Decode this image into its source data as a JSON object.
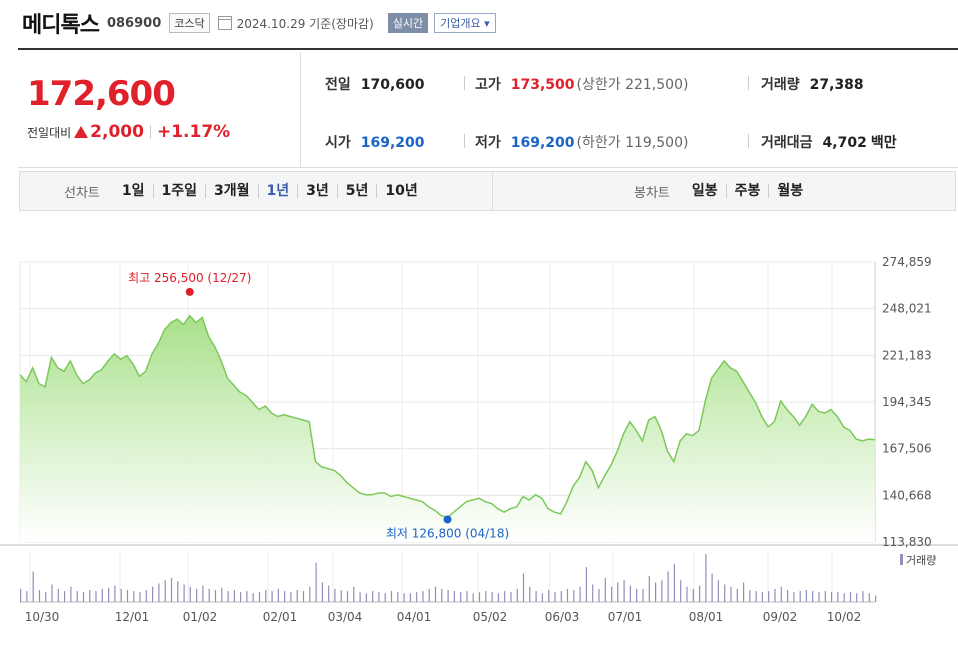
{
  "header": {
    "name": "메디톡스",
    "code": "086900",
    "market": "코스닥",
    "date_text": "2024.10.29 기준(장마감)",
    "realtime_label": "실시간",
    "company_overview_label": "기업개요"
  },
  "price": {
    "current": "172,600",
    "change_label": "전일대비",
    "change_value": "2,000",
    "change_pct": "+1.17%"
  },
  "stats": {
    "prev_close_label": "전일",
    "prev_close": "170,600",
    "high_label": "고가",
    "high": "173,500",
    "upper_limit": "(상한가 221,500)",
    "volume_label": "거래량",
    "volume": "27,388",
    "open_label": "시가",
    "open": "169,200",
    "low_label": "저가",
    "low": "169,200",
    "lower_limit": "(하한가 119,500)",
    "amount_label": "거래대금",
    "amount": "4,702",
    "amount_unit": "백만"
  },
  "period_bar": {
    "line_chart_label": "선차트",
    "line_periods": [
      "1일",
      "1주일",
      "3개월",
      "1년",
      "3년",
      "5년",
      "10년"
    ],
    "active_period": "1년",
    "candle_chart_label": "봉차트",
    "candle_periods": [
      "일봉",
      "주봉",
      "월봉"
    ]
  },
  "colors": {
    "up": "#e0202a",
    "down": "#1a64c8",
    "line": "#7cc95a",
    "area_top": "#a8e08a",
    "volume": "#8f8fb8"
  },
  "chart_data": {
    "type": "area",
    "y_ticks": [
      "274,859",
      "248,021",
      "221,183",
      "194,345",
      "167,506",
      "140,668",
      "113,830"
    ],
    "ylim": [
      113830,
      274859
    ],
    "x_ticks": [
      "10/30",
      "12/01",
      "01/02",
      "02/01",
      "03/04",
      "04/01",
      "05/02",
      "06/03",
      "07/01",
      "08/01",
      "09/02",
      "10/02"
    ],
    "max_annotation": "최고 256,500 (12/27)",
    "min_annotation": "최저 126,800 (04/18)",
    "volume_legend": "거래량",
    "price_series": [
      210000,
      206000,
      214000,
      205000,
      203000,
      220000,
      214000,
      212000,
      218000,
      210000,
      205000,
      207000,
      211000,
      213000,
      218000,
      222000,
      219000,
      221000,
      216000,
      209000,
      212000,
      222000,
      228000,
      236000,
      240000,
      242000,
      239000,
      244000,
      240000,
      243000,
      232000,
      226000,
      218000,
      208000,
      204000,
      200000,
      198000,
      194000,
      190000,
      192000,
      188000,
      186000,
      187000,
      186000,
      185000,
      184000,
      183000,
      160000,
      157000,
      156000,
      155000,
      152000,
      148000,
      145000,
      142000,
      141000,
      141000,
      142000,
      142000,
      140000,
      141000,
      140000,
      139000,
      138000,
      137000,
      134000,
      132000,
      129000,
      128000,
      131000,
      134000,
      137000,
      138000,
      139000,
      137000,
      136000,
      133000,
      131000,
      133000,
      134000,
      140000,
      138000,
      141000,
      139000,
      133000,
      131000,
      130000,
      137000,
      146000,
      151000,
      160000,
      155000,
      145000,
      152000,
      158000,
      166000,
      176000,
      183000,
      178000,
      172000,
      184000,
      186000,
      178000,
      166000,
      160000,
      172000,
      176000,
      175000,
      178000,
      195000,
      208000,
      213000,
      218000,
      214000,
      212000,
      206000,
      200000,
      194000,
      186000,
      180000,
      183000,
      195000,
      190000,
      186000,
      181000,
      186000,
      193000,
      189000,
      188000,
      190000,
      186000,
      180000,
      178000,
      173000,
      172000,
      173000,
      172600
    ],
    "volume_series": [
      12,
      10,
      28,
      11,
      9,
      16,
      12,
      10,
      14,
      10,
      9,
      11,
      10,
      12,
      13,
      15,
      12,
      11,
      10,
      9,
      11,
      14,
      17,
      20,
      22,
      19,
      16,
      14,
      12,
      15,
      12,
      11,
      13,
      10,
      11,
      9,
      10,
      8,
      9,
      11,
      10,
      12,
      10,
      9,
      11,
      10,
      14,
      36,
      18,
      15,
      12,
      11,
      10,
      14,
      9,
      8,
      10,
      9,
      8,
      10,
      9,
      8,
      8,
      9,
      10,
      12,
      14,
      12,
      11,
      10,
      9,
      10,
      8,
      9,
      10,
      9,
      8,
      10,
      9,
      12,
      26,
      14,
      10,
      8,
      11,
      9,
      10,
      12,
      11,
      14,
      32,
      16,
      12,
      22,
      14,
      18,
      20,
      15,
      12,
      12,
      24,
      18,
      20,
      28,
      35,
      20,
      14,
      12,
      15,
      44,
      26,
      20,
      16,
      14,
      12,
      18,
      11,
      10,
      9,
      10,
      12,
      14,
      11,
      9,
      10,
      11,
      10,
      9,
      10,
      9,
      9,
      8,
      9,
      8,
      10,
      8,
      6
    ]
  }
}
